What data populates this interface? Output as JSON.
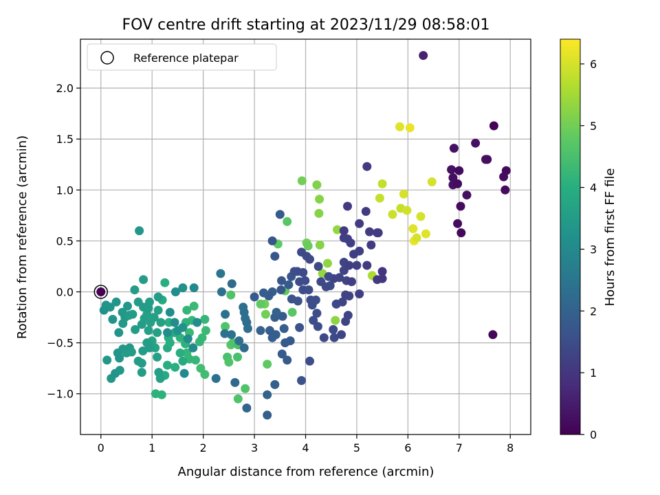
{
  "chart_data": {
    "type": "scatter",
    "title": "FOV centre drift starting at 2023/11/29 08:58:01",
    "xlabel": "Angular distance from reference (arcmin)",
    "ylabel": "Rotation from reference (arcmin)",
    "xlim": [
      -0.4,
      8.4
    ],
    "ylim": [
      -1.4,
      2.48
    ],
    "xticks": [
      0,
      1,
      2,
      3,
      4,
      5,
      6,
      7,
      8
    ],
    "yticks": [
      -1.0,
      -0.5,
      0.0,
      0.5,
      1.0,
      1.5,
      2.0
    ],
    "grid": true,
    "legend": {
      "position": "upper-left",
      "entries": [
        "Reference platepar"
      ]
    },
    "reference_point": {
      "x": 0.0,
      "y": 0.0
    },
    "colorbar": {
      "label": "Hours from first FF file",
      "colormap": "viridis",
      "range": [
        0,
        6.4
      ],
      "ticks": [
        0,
        1,
        2,
        3,
        4,
        5,
        6
      ]
    },
    "points": [
      [
        0.0,
        0.0,
        0.0
      ],
      [
        6.3,
        2.32,
        0.6
      ],
      [
        7.68,
        1.63,
        0.05
      ],
      [
        6.9,
        1.41,
        0.3
      ],
      [
        7.32,
        1.46,
        0.3
      ],
      [
        7.52,
        1.3,
        0.25
      ],
      [
        7.55,
        1.3,
        0.25
      ],
      [
        6.85,
        1.2,
        0.3
      ],
      [
        7.0,
        1.19,
        0.2
      ],
      [
        6.88,
        1.12,
        0.25
      ],
      [
        6.88,
        1.05,
        0.3
      ],
      [
        6.97,
        1.06,
        0.2
      ],
      [
        7.15,
        0.95,
        0.25
      ],
      [
        7.03,
        0.84,
        0.2
      ],
      [
        6.97,
        0.67,
        0.2
      ],
      [
        7.04,
        0.58,
        0.15
      ],
      [
        7.92,
        1.19,
        0.15
      ],
      [
        7.87,
        1.13,
        0.2
      ],
      [
        7.9,
        1.0,
        0.2
      ],
      [
        7.66,
        -0.42,
        0.1
      ],
      [
        5.84,
        1.62,
        6.1
      ],
      [
        6.04,
        1.61,
        6.2
      ],
      [
        6.47,
        1.08,
        6.0
      ],
      [
        5.5,
        1.06,
        5.8
      ],
      [
        5.45,
        0.92,
        5.85
      ],
      [
        5.92,
        0.96,
        6.0
      ],
      [
        5.86,
        0.82,
        5.85
      ],
      [
        5.98,
        0.8,
        5.95
      ],
      [
        5.7,
        0.76,
        5.9
      ],
      [
        6.25,
        0.74,
        6.0
      ],
      [
        6.1,
        0.62,
        6.1
      ],
      [
        6.35,
        0.57,
        6.1
      ],
      [
        6.12,
        0.5,
        6.2
      ],
      [
        6.17,
        0.53,
        6.0
      ],
      [
        5.3,
        0.16,
        5.6
      ],
      [
        3.93,
        1.09,
        5.0
      ],
      [
        4.22,
        1.05,
        5.15
      ],
      [
        4.26,
        0.77,
        5.2
      ],
      [
        4.27,
        0.91,
        5.2
      ],
      [
        4.02,
        0.48,
        5.0
      ],
      [
        4.05,
        0.45,
        4.9
      ],
      [
        4.28,
        0.46,
        5.2
      ],
      [
        4.43,
        0.28,
        5.3
      ],
      [
        4.33,
        0.18,
        5.35
      ],
      [
        4.62,
        0.61,
        5.35
      ],
      [
        4.58,
        -0.28,
        5.3
      ],
      [
        3.46,
        0.47,
        4.8
      ],
      [
        3.64,
        0.69,
        4.7
      ],
      [
        3.2,
        -0.12,
        5.0
      ],
      [
        3.22,
        -0.22,
        5.0
      ],
      [
        3.12,
        -0.12,
        4.8
      ],
      [
        3.6,
        0.01,
        4.8
      ],
      [
        3.74,
        -0.2,
        4.7
      ],
      [
        3.25,
        -0.71,
        4.8
      ],
      [
        2.54,
        -0.03,
        4.6
      ],
      [
        2.43,
        -0.34,
        4.6
      ],
      [
        2.54,
        -0.52,
        4.7
      ],
      [
        2.58,
        -0.5,
        4.6
      ],
      [
        2.47,
        -0.64,
        4.5
      ],
      [
        2.5,
        -0.69,
        4.6
      ],
      [
        2.68,
        -0.52,
        4.5
      ],
      [
        2.67,
        -0.64,
        4.5
      ],
      [
        2.82,
        -0.95,
        4.6
      ],
      [
        2.68,
        -1.05,
        4.6
      ],
      [
        1.82,
        -0.14,
        4.3
      ],
      [
        1.78,
        -0.28,
        4.2
      ],
      [
        1.68,
        -0.18,
        4.2
      ],
      [
        1.66,
        -0.3,
        4.1
      ],
      [
        1.73,
        -0.4,
        4.3
      ],
      [
        1.68,
        -0.6,
        4.2
      ],
      [
        1.73,
        -0.66,
        4.2
      ],
      [
        1.85,
        -0.67,
        4.2
      ],
      [
        1.95,
        -0.75,
        4.4
      ],
      [
        2.03,
        -0.81,
        4.4
      ],
      [
        2.03,
        -0.27,
        4.2
      ],
      [
        2.05,
        -0.38,
        4.3
      ],
      [
        1.98,
        -0.45,
        4.3
      ],
      [
        1.93,
        -0.49,
        4.2
      ],
      [
        1.65,
        -0.51,
        4.1
      ],
      [
        1.55,
        -0.45,
        4.1
      ],
      [
        1.45,
        -0.74,
        4.0
      ],
      [
        1.3,
        -0.72,
        4.0
      ],
      [
        1.25,
        -0.82,
        3.9
      ],
      [
        1.3,
        -0.55,
        3.9
      ],
      [
        1.25,
        0.09,
        4.0
      ],
      [
        1.07,
        -1.0,
        4.1
      ],
      [
        1.19,
        -1.01,
        4.1
      ],
      [
        1.2,
        -0.08,
        3.9
      ],
      [
        1.33,
        -0.3,
        4.0
      ],
      [
        1.32,
        -0.45,
        4.0
      ],
      [
        1.35,
        -0.5,
        4.0
      ],
      [
        1.44,
        -0.4,
        3.9
      ],
      [
        1.55,
        -0.6,
        4.0
      ],
      [
        1.6,
        -0.68,
        3.9
      ],
      [
        0.75,
        0.6,
        3.4
      ],
      [
        0.42,
        -0.2,
        3.4
      ],
      [
        0.47,
        -0.25,
        3.4
      ],
      [
        0.18,
        -0.15,
        3.3
      ],
      [
        0.1,
        -0.13,
        3.3
      ],
      [
        0.06,
        -0.18,
        3.2
      ],
      [
        0.3,
        -0.1,
        3.3
      ],
      [
        0.23,
        -0.27,
        3.3
      ],
      [
        0.35,
        -0.4,
        3.3
      ],
      [
        0.43,
        -0.31,
        3.4
      ],
      [
        0.52,
        -0.14,
        3.4
      ],
      [
        0.55,
        -0.23,
        3.5
      ],
      [
        0.62,
        -0.22,
        3.5
      ],
      [
        0.67,
        -0.37,
        3.5
      ],
      [
        0.66,
        0.02,
        3.5
      ],
      [
        0.83,
        0.12,
        3.5
      ],
      [
        0.73,
        -0.1,
        3.5
      ],
      [
        0.83,
        -0.15,
        3.5
      ],
      [
        0.8,
        -0.32,
        3.5
      ],
      [
        0.85,
        -0.26,
        3.6
      ],
      [
        0.9,
        -0.22,
        3.6
      ],
      [
        0.93,
        -0.16,
        3.5
      ],
      [
        0.95,
        -0.1,
        3.5
      ],
      [
        0.97,
        -0.3,
        3.6
      ],
      [
        0.93,
        -0.38,
        3.6
      ],
      [
        1.0,
        -0.48,
        3.7
      ],
      [
        1.04,
        -0.25,
        3.6
      ],
      [
        1.12,
        -0.05,
        3.5
      ],
      [
        1.12,
        -0.18,
        3.6
      ],
      [
        1.17,
        -0.3,
        3.6
      ],
      [
        1.1,
        -0.4,
        3.6
      ],
      [
        1.06,
        -0.55,
        3.7
      ],
      [
        0.12,
        -0.67,
        3.4
      ],
      [
        0.2,
        -0.85,
        3.4
      ],
      [
        0.28,
        -0.8,
        3.3
      ],
      [
        0.33,
        -0.6,
        3.3
      ],
      [
        0.36,
        -0.65,
        3.3
      ],
      [
        0.37,
        -0.77,
        3.4
      ],
      [
        0.43,
        -0.56,
        3.4
      ],
      [
        0.5,
        -0.6,
        3.5
      ],
      [
        0.56,
        -0.55,
        3.4
      ],
      [
        0.6,
        -0.59,
        3.5
      ],
      [
        0.73,
        -0.68,
        3.5
      ],
      [
        0.8,
        -0.7,
        3.5
      ],
      [
        0.8,
        -0.79,
        3.5
      ],
      [
        0.82,
        -0.58,
        3.5
      ],
      [
        0.9,
        -0.5,
        3.5
      ],
      [
        0.95,
        -0.55,
        3.5
      ],
      [
        1.16,
        -0.85,
        3.6
      ],
      [
        1.13,
        -0.79,
        3.6
      ],
      [
        1.1,
        -0.64,
        3.6
      ],
      [
        1.6,
        0.04,
        3.2
      ],
      [
        1.82,
        0.04,
        3.0
      ],
      [
        1.44,
        -0.3,
        3.1
      ],
      [
        1.5,
        -0.38,
        3.2
      ],
      [
        1.6,
        -0.35,
        3.2
      ],
      [
        1.7,
        -0.46,
        3.1
      ],
      [
        1.8,
        -0.55,
        3.0
      ],
      [
        1.88,
        -0.3,
        3.1
      ],
      [
        1.63,
        -0.8,
        3.0
      ],
      [
        1.3,
        -0.4,
        3.1
      ],
      [
        1.35,
        -0.2,
        3.1
      ],
      [
        1.46,
        0.0,
        3.1
      ],
      [
        2.34,
        0.18,
        2.5
      ],
      [
        2.36,
        0.0,
        2.4
      ],
      [
        2.43,
        -0.22,
        2.4
      ],
      [
        2.42,
        -0.41,
        2.4
      ],
      [
        2.55,
        -0.42,
        2.4
      ],
      [
        2.62,
        -0.89,
        2.2
      ],
      [
        2.25,
        -0.85,
        2.4
      ],
      [
        2.8,
        -0.55,
        2.2
      ],
      [
        2.85,
        -1.14,
        2.1
      ],
      [
        2.7,
        -0.48,
        2.3
      ],
      [
        2.8,
        -0.2,
        2.3
      ],
      [
        2.85,
        -0.3,
        2.2
      ],
      [
        2.87,
        -0.36,
        2.3
      ],
      [
        2.78,
        -0.15,
        2.3
      ],
      [
        2.82,
        -0.26,
        2.3
      ],
      [
        2.56,
        0.08,
        2.2
      ],
      [
        3.25,
        -1.01,
        2.0
      ],
      [
        3.25,
        -1.21,
        1.9
      ],
      [
        3.4,
        -0.91,
        1.9
      ],
      [
        3.12,
        -0.38,
        2.0
      ],
      [
        3.3,
        -0.38,
        1.9
      ],
      [
        3.35,
        -0.45,
        1.9
      ],
      [
        3.42,
        -0.42,
        1.9
      ],
      [
        3.55,
        -0.24,
        1.8
      ],
      [
        3.58,
        -0.36,
        1.9
      ],
      [
        3.6,
        -0.5,
        1.8
      ],
      [
        3.54,
        -0.61,
        1.8
      ],
      [
        3.64,
        -0.67,
        1.8
      ],
      [
        3.7,
        -0.48,
        1.8
      ],
      [
        3.4,
        -0.25,
        1.9
      ],
      [
        3.43,
        -0.2,
        2.0
      ],
      [
        3.35,
        0.0,
        1.9
      ],
      [
        3.28,
        -0.04,
        1.8
      ],
      [
        3.18,
        -0.01,
        1.9
      ],
      [
        3.0,
        -0.05,
        1.8
      ],
      [
        3.5,
        0.76,
        1.8
      ],
      [
        3.35,
        0.5,
        1.7
      ],
      [
        3.4,
        0.35,
        1.7
      ],
      [
        3.53,
        0.11,
        1.7
      ],
      [
        3.52,
        0.02,
        1.7
      ],
      [
        3.67,
        0.07,
        1.8
      ],
      [
        3.72,
        0.15,
        1.7
      ],
      [
        3.73,
        -0.07,
        1.6
      ],
      [
        3.85,
        -0.09,
        1.6
      ],
      [
        3.88,
        -0.35,
        1.6
      ],
      [
        3.92,
        -0.87,
        1.6
      ],
      [
        3.88,
        0.1,
        1.5
      ],
      [
        3.95,
        0.02,
        1.5
      ],
      [
        3.99,
        0.11,
        1.5
      ],
      [
        3.95,
        0.19,
        1.5
      ],
      [
        3.84,
        0.2,
        1.5
      ],
      [
        3.78,
        0.2,
        1.5
      ],
      [
        3.92,
        0.39,
        1.4
      ],
      [
        4.02,
        0.35,
        1.4
      ],
      [
        4.08,
        0.32,
        1.4
      ],
      [
        4.06,
        0.02,
        1.5
      ],
      [
        4.1,
        -0.08,
        1.5
      ],
      [
        4.13,
        -0.13,
        1.5
      ],
      [
        4.2,
        -0.08,
        1.5
      ],
      [
        4.15,
        -0.28,
        1.5
      ],
      [
        4.22,
        -0.21,
        1.5
      ],
      [
        4.24,
        -0.34,
        1.5
      ],
      [
        4.08,
        -0.68,
        1.5
      ],
      [
        4.36,
        -0.45,
        1.4
      ],
      [
        4.56,
        -0.45,
        1.4
      ],
      [
        4.54,
        -0.37,
        1.4
      ],
      [
        4.7,
        -0.42,
        1.3
      ],
      [
        4.78,
        -0.29,
        1.3
      ],
      [
        4.83,
        -0.23,
        1.3
      ],
      [
        4.6,
        -0.12,
        1.4
      ],
      [
        4.4,
        0.05,
        1.4
      ],
      [
        4.55,
        0.13,
        1.3
      ],
      [
        4.66,
        0.14,
        1.3
      ],
      [
        4.75,
        0.21,
        1.3
      ],
      [
        4.8,
        0.11,
        1.3
      ],
      [
        4.85,
        -0.04,
        1.3
      ],
      [
        4.78,
        -0.03,
        1.3
      ],
      [
        4.72,
        -0.1,
        1.3
      ],
      [
        4.25,
        0.25,
        1.4
      ],
      [
        4.75,
        0.29,
        1.3
      ],
      [
        4.85,
        0.26,
        1.2
      ],
      [
        4.9,
        0.1,
        1.2
      ],
      [
        5.0,
        0.26,
        1.2
      ],
      [
        5.05,
        -0.02,
        1.2
      ],
      [
        5.05,
        0.4,
        1.2
      ],
      [
        4.75,
        0.53,
        1.2
      ],
      [
        4.82,
        0.52,
        1.2
      ],
      [
        4.88,
        0.48,
        1.2
      ],
      [
        4.94,
        0.37,
        1.2
      ],
      [
        4.75,
        0.6,
        1.1
      ],
      [
        5.05,
        0.67,
        1.1
      ],
      [
        5.18,
        0.79,
        1.1
      ],
      [
        5.25,
        0.59,
        1.1
      ],
      [
        5.28,
        0.46,
        1.1
      ],
      [
        5.2,
        0.26,
        1.1
      ],
      [
        5.4,
        0.58,
        1.1
      ],
      [
        5.42,
        0.58,
        1.1
      ],
      [
        5.4,
        0.12,
        1.1
      ],
      [
        5.5,
        0.13,
        1.0
      ],
      [
        5.5,
        0.2,
        1.0
      ],
      [
        4.82,
        0.84,
        1.1
      ],
      [
        5.2,
        1.23,
        1.1
      ],
      [
        4.48,
        0.06,
        1.4
      ],
      [
        4.6,
        -0.12,
        1.4
      ],
      [
        4.45,
        0.15,
        1.4
      ],
      [
        4.3,
        0.1,
        1.4
      ]
    ]
  }
}
